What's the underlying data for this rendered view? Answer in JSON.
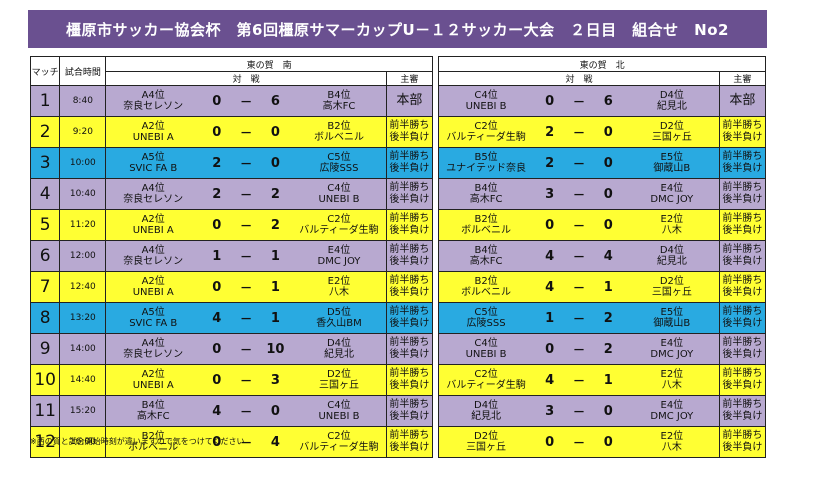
{
  "title": "橿原市サッカー協会杯　第6回橿原サマーカップU－１２サッカー大会　２日目　組合せ　No2",
  "headers": {
    "match": "マッチ",
    "time": "試合時間",
    "south_court": "東の賀　南",
    "north_court": "東の賀　北",
    "matchup": "対　戦",
    "referee": "主審"
  },
  "colors": {
    "purple": "#b8a9d0",
    "yellow": "#ffff33",
    "blue": "#29aae1",
    "title_bg": "#6a5090"
  },
  "rows": [
    {
      "no": "1",
      "time": "8:40",
      "color": "purple",
      "s_a1": "A4位",
      "s_a2": "奈良セレソン",
      "s_sa": "0",
      "s_dash": "－",
      "s_sb": "6",
      "s_b1": "B4位",
      "s_b2": "高木FC",
      "s_ref1": "本部",
      "s_ref2": "",
      "n_a1": "C4位",
      "n_a2": "UNEBI B",
      "n_sa": "0",
      "n_dash": "－",
      "n_sb": "6",
      "n_b1": "D4位",
      "n_b2": "紀見北",
      "n_ref1": "本部",
      "n_ref2": ""
    },
    {
      "no": "2",
      "time": "9:20",
      "color": "yellow",
      "s_a1": "A2位",
      "s_a2": "UNEBI A",
      "s_sa": "0",
      "s_dash": "－",
      "s_sb": "0",
      "s_b1": "B2位",
      "s_b2": "ボルベニル",
      "s_ref1": "前半勝ち",
      "s_ref2": "後半負け",
      "n_a1": "C2位",
      "n_a2": "バルティーダ生駒",
      "n_sa": "2",
      "n_dash": "－",
      "n_sb": "0",
      "n_b1": "D2位",
      "n_b2": "三国ヶ丘",
      "n_ref1": "前半勝ち",
      "n_ref2": "後半負け"
    },
    {
      "no": "3",
      "time": "10:00",
      "color": "blue",
      "s_a1": "A5位",
      "s_a2": "SVIC FA B",
      "s_sa": "2",
      "s_dash": "－",
      "s_sb": "0",
      "s_b1": "C5位",
      "s_b2": "広陵SSS",
      "s_ref1": "前半勝ち",
      "s_ref2": "後半負け",
      "n_a1": "B5位",
      "n_a2": "ユナイテッド奈良",
      "n_sa": "2",
      "n_dash": "－",
      "n_sb": "0",
      "n_b1": "E5位",
      "n_b2": "御蔵山B",
      "n_ref1": "前半勝ち",
      "n_ref2": "後半負け"
    },
    {
      "no": "4",
      "time": "10:40",
      "color": "purple",
      "s_a1": "A4位",
      "s_a2": "奈良セレソン",
      "s_sa": "2",
      "s_dash": "－",
      "s_sb": "2",
      "s_b1": "C4位",
      "s_b2": "UNEBI B",
      "s_ref1": "前半勝ち",
      "s_ref2": "後半負け",
      "n_a1": "B4位",
      "n_a2": "高木FC",
      "n_sa": "3",
      "n_dash": "－",
      "n_sb": "0",
      "n_b1": "E4位",
      "n_b2": "DMC JOY",
      "n_ref1": "前半勝ち",
      "n_ref2": "後半負け"
    },
    {
      "no": "5",
      "time": "11:20",
      "color": "yellow",
      "s_a1": "A2位",
      "s_a2": "UNEBI A",
      "s_sa": "0",
      "s_dash": "－",
      "s_sb": "2",
      "s_b1": "C2位",
      "s_b2": "バルティーダ生駒",
      "s_ref1": "前半勝ち",
      "s_ref2": "後半負け",
      "n_a1": "B2位",
      "n_a2": "ボルベニル",
      "n_sa": "0",
      "n_dash": "－",
      "n_sb": "0",
      "n_b1": "E2位",
      "n_b2": "八木",
      "n_ref1": "前半勝ち",
      "n_ref2": "後半負け"
    },
    {
      "no": "6",
      "time": "12:00",
      "color": "purple",
      "s_a1": "A4位",
      "s_a2": "奈良セレソン",
      "s_sa": "1",
      "s_dash": "－",
      "s_sb": "1",
      "s_b1": "E4位",
      "s_b2": "DMC JOY",
      "s_ref1": "前半勝ち",
      "s_ref2": "後半負け",
      "n_a1": "B4位",
      "n_a2": "高木FC",
      "n_sa": "4",
      "n_dash": "－",
      "n_sb": "4",
      "n_b1": "D4位",
      "n_b2": "紀見北",
      "n_ref1": "前半勝ち",
      "n_ref2": "後半負け"
    },
    {
      "no": "7",
      "time": "12:40",
      "color": "yellow",
      "s_a1": "A2位",
      "s_a2": "UNEBI A",
      "s_sa": "0",
      "s_dash": "－",
      "s_sb": "1",
      "s_b1": "E2位",
      "s_b2": "八木",
      "s_ref1": "前半勝ち",
      "s_ref2": "後半負け",
      "n_a1": "B2位",
      "n_a2": "ボルベニル",
      "n_sa": "4",
      "n_dash": "－",
      "n_sb": "1",
      "n_b1": "D2位",
      "n_b2": "三国ヶ丘",
      "n_ref1": "前半勝ち",
      "n_ref2": "後半負け"
    },
    {
      "no": "8",
      "time": "13:20",
      "color": "blue",
      "s_a1": "A5位",
      "s_a2": "SVIC FA B",
      "s_sa": "4",
      "s_dash": "－",
      "s_sb": "1",
      "s_b1": "D5位",
      "s_b2": "香久山BM",
      "s_ref1": "前半勝ち",
      "s_ref2": "後半負け",
      "n_a1": "C5位",
      "n_a2": "広陵SSS",
      "n_sa": "1",
      "n_dash": "－",
      "n_sb": "2",
      "n_b1": "E5位",
      "n_b2": "御蔵山B",
      "n_ref1": "前半勝ち",
      "n_ref2": "後半負け"
    },
    {
      "no": "9",
      "time": "14:00",
      "color": "purple",
      "s_a1": "A4位",
      "s_a2": "奈良セレソン",
      "s_sa": "0",
      "s_dash": "－",
      "s_sb": "10",
      "s_b1": "D4位",
      "s_b2": "紀見北",
      "s_ref1": "前半勝ち",
      "s_ref2": "後半負け",
      "n_a1": "C4位",
      "n_a2": "UNEBI B",
      "n_sa": "0",
      "n_dash": "－",
      "n_sb": "2",
      "n_b1": "E4位",
      "n_b2": "DMC JOY",
      "n_ref1": "前半勝ち",
      "n_ref2": "後半負け"
    },
    {
      "no": "10",
      "time": "14:40",
      "color": "yellow",
      "s_a1": "A2位",
      "s_a2": "UNEBI A",
      "s_sa": "0",
      "s_dash": "－",
      "s_sb": "3",
      "s_b1": "D2位",
      "s_b2": "三国ヶ丘",
      "s_ref1": "前半勝ち",
      "s_ref2": "後半負け",
      "n_a1": "C2位",
      "n_a2": "バルティーダ生駒",
      "n_sa": "4",
      "n_dash": "－",
      "n_sb": "1",
      "n_b1": "E2位",
      "n_b2": "八木",
      "n_ref1": "前半勝ち",
      "n_ref2": "後半負け"
    },
    {
      "no": "11",
      "time": "15:20",
      "color": "purple",
      "s_a1": "B4位",
      "s_a2": "高木FC",
      "s_sa": "4",
      "s_dash": "－",
      "s_sb": "0",
      "s_b1": "C4位",
      "s_b2": "UNEBI B",
      "s_ref1": "前半勝ち",
      "s_ref2": "後半負け",
      "n_a1": "D4位",
      "n_a2": "紀見北",
      "n_sa": "3",
      "n_dash": "－",
      "n_sb": "0",
      "n_b1": "E4位",
      "n_b2": "DMC JOY",
      "n_ref1": "前半勝ち",
      "n_ref2": "後半負け"
    },
    {
      "no": "12",
      "time": "16:00",
      "color": "yellow",
      "s_a1": "B2位",
      "s_a2": "ボルベニル",
      "s_sa": "0",
      "s_dash": "－",
      "s_sb": "4",
      "s_b1": "C2位",
      "s_b2": "バルティーダ生駒",
      "s_ref1": "前半勝ち",
      "s_ref2": "後半負け",
      "n_a1": "D2位",
      "n_a2": "三国ヶ丘",
      "n_sa": "0",
      "n_dash": "－",
      "n_sb": "0",
      "n_b1": "E2位",
      "n_b2": "八木",
      "n_ref1": "前半勝ち",
      "n_ref2": "後半負け"
    }
  ],
  "note": "※西の賀と試合開始時刻が違いますので気をつけてください"
}
